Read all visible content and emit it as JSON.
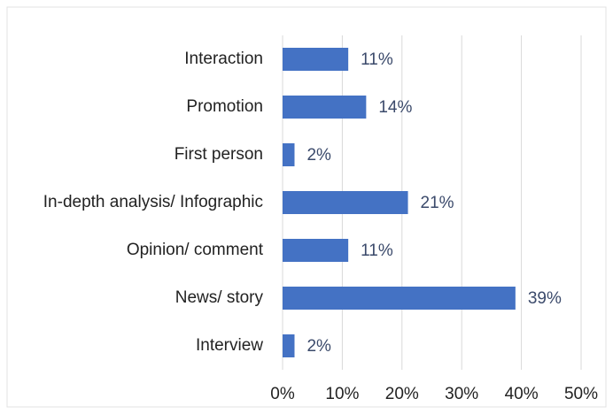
{
  "chart_data": {
    "type": "bar",
    "orientation": "horizontal",
    "categories": [
      "Interaction",
      "Promotion",
      "First person",
      "In-depth analysis/ Infographic",
      "Opinion/ comment",
      "News/ story",
      "Interview"
    ],
    "values": [
      11,
      14,
      2,
      21,
      11,
      39,
      2
    ],
    "value_labels": [
      "11%",
      "14%",
      "2%",
      "21%",
      "11%",
      "39%",
      "2%"
    ],
    "color": "#4472c4",
    "xlim": [
      0,
      50
    ],
    "xticks": [
      {
        "value": 0,
        "label": "0%"
      },
      {
        "value": 10,
        "label": "10%"
      },
      {
        "value": 20,
        "label": "20%"
      },
      {
        "value": 30,
        "label": "30%"
      },
      {
        "value": 40,
        "label": "40%"
      },
      {
        "value": 50,
        "label": "50%"
      }
    ],
    "grid": true
  }
}
